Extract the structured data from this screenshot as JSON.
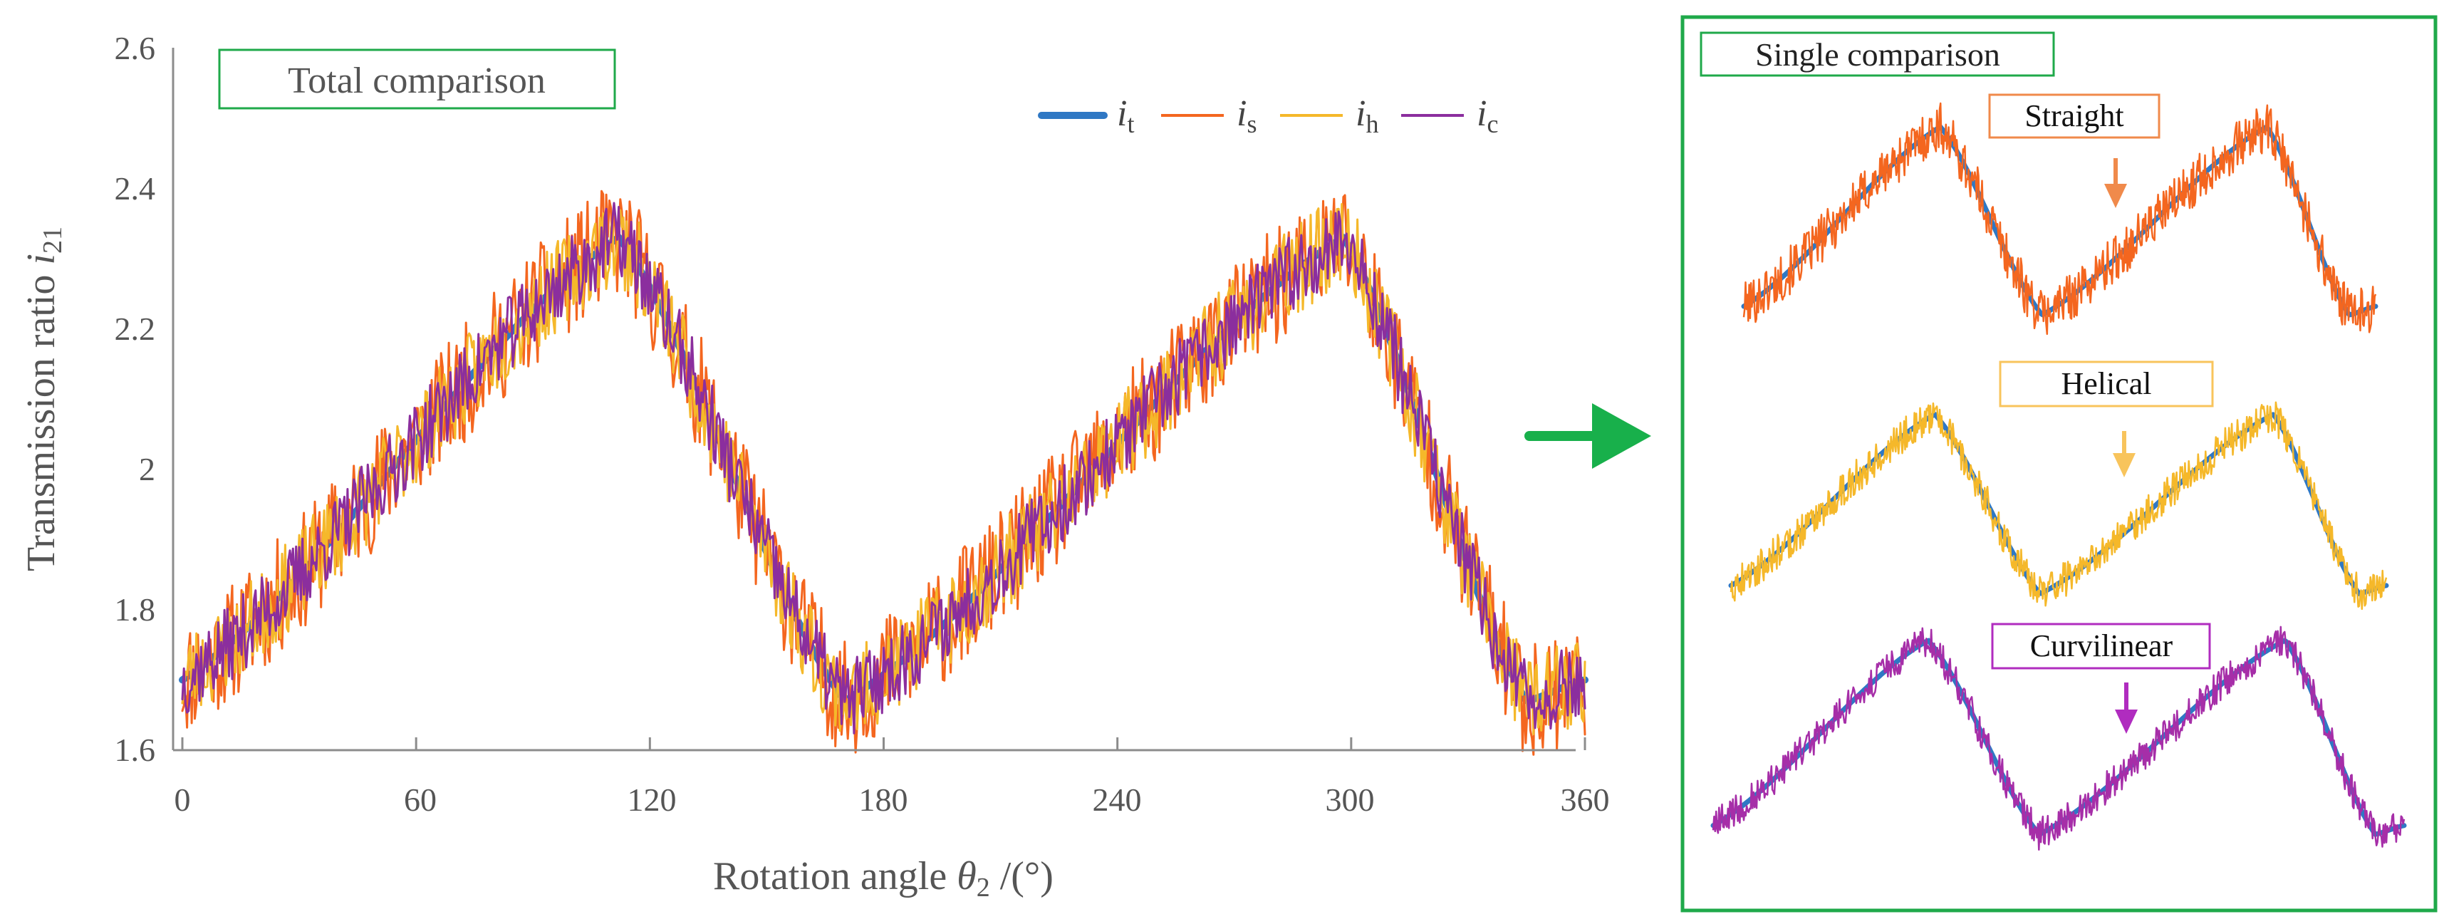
{
  "chart_data": [
    {
      "id": "total",
      "type": "line",
      "title": "Total comparison",
      "xlabel": "Rotation angle",
      "xlabel_symbol": "θ",
      "xlabel_symbol_sub": "2",
      "xlabel_unit": "/(°)",
      "ylabel": "Transmission ratio",
      "ylabel_symbol": "i",
      "ylabel_symbol_sub": "21",
      "xlim": [
        0,
        360
      ],
      "ylim": [
        1.6,
        2.6
      ],
      "xticks": [
        0,
        60,
        120,
        180,
        240,
        300,
        360
      ],
      "xtick_labels": [
        "0",
        "60",
        "120",
        "180",
        "240",
        "300",
        "360"
      ],
      "yticks": [
        1.6,
        1.8,
        2.0,
        2.2,
        2.4,
        2.6
      ],
      "ytick_labels": [
        "1.6",
        "1.8",
        "2",
        "2.2",
        "2.4",
        "2.6"
      ],
      "legend_position": "top-right",
      "grid": false,
      "baseline_knots": {
        "x": [
          0,
          112,
          170,
          298,
          345,
          360
        ],
        "y": [
          1.7,
          2.33,
          1.67,
          2.33,
          1.67,
          1.7
        ]
      },
      "series": [
        {
          "key": "t",
          "name": "i",
          "sub": "t",
          "color": "#2f78c4",
          "noise_amplitude": 0.0,
          "seed": 1
        },
        {
          "key": "s",
          "name": "i",
          "sub": "s",
          "color": "#f4661f",
          "noise_amplitude": 0.085,
          "seed": 11
        },
        {
          "key": "h",
          "name": "i",
          "sub": "h",
          "color": "#f5b82a",
          "noise_amplitude": 0.065,
          "seed": 23
        },
        {
          "key": "c",
          "name": "i",
          "sub": "c",
          "color": "#8b2e9e",
          "noise_amplitude": 0.055,
          "seed": 37
        }
      ]
    },
    {
      "id": "single",
      "type": "line",
      "title": "Single comparison",
      "panels": [
        {
          "label": "Straight",
          "color": "#f4661f",
          "noise_amplitude": 0.085,
          "seed": 101
        },
        {
          "label": "Helical",
          "color": "#f5b82a",
          "noise_amplitude": 0.065,
          "seed": 202
        },
        {
          "label": "Curvilinear",
          "color": "#a62ea8",
          "noise_amplitude": 0.055,
          "seed": 303
        }
      ],
      "baseline_color": "#2f78c4"
    }
  ],
  "colors": {
    "frame_green": "#1fa94a",
    "arrow_green": "#18b04b",
    "axis": "#8c8c8c",
    "text": "#555555",
    "straight_arrow": "#f08a4b",
    "helical_arrow": "#f8c45c",
    "curvilinear_arrow": "#b02cbf"
  }
}
